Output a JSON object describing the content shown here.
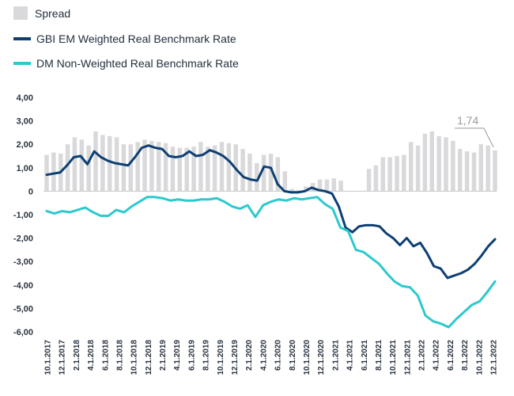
{
  "chart_data": {
    "type": "bar+line",
    "title": "",
    "xlabel": "",
    "ylabel": "",
    "ylim": [
      -6,
      4
    ],
    "yticks": [
      "4,00",
      "3,00",
      "2,00",
      "1,00",
      "0",
      "-1,00",
      "-2,00",
      "-3,00",
      "-4,00",
      "-5,00",
      "-6,00"
    ],
    "ytick_values": [
      4,
      3,
      2,
      1,
      0,
      -1,
      -2,
      -3,
      -4,
      -5,
      -6
    ],
    "xtick_labels": [
      "10.1.2017",
      "12.1.2017",
      "2.1.2018",
      "4.1.2018",
      "6.1.2018",
      "8.1.2018",
      "10.1.2018",
      "12.1.2018",
      "2.1.2019",
      "4.1.2019",
      "6.1.2019",
      "8.1.2019",
      "10.1.2019",
      "12.1.2019",
      "2.1.2020",
      "4.1.2020",
      "6.1.2020",
      "8.1.2020",
      "10.1.2020",
      "12.1.2020",
      "2.1.2021",
      "4.1.2021",
      "6.1.2021",
      "8.1.2021",
      "10.1.2021",
      "12.1.2021",
      "2.1.2022",
      "4.1.2022",
      "6.1.2022",
      "8.1.2022",
      "10.1.2022",
      "12.1.2022"
    ],
    "series": [
      {
        "name": "Spread",
        "kind": "bar",
        "color": "#d9d9dc",
        "values": [
          1.55,
          1.65,
          1.6,
          2.0,
          2.3,
          2.2,
          1.95,
          2.55,
          2.4,
          2.35,
          2.3,
          2.0,
          2.0,
          2.1,
          2.2,
          2.15,
          2.1,
          2.05,
          1.9,
          1.85,
          1.85,
          1.9,
          2.1,
          1.9,
          1.95,
          2.1,
          2.05,
          2.0,
          1.8,
          1.6,
          1.2,
          1.55,
          1.6,
          1.45,
          0.85,
          0.1,
          0.05,
          0.2,
          0.35,
          0.5,
          0.5,
          0.55,
          0.45,
          0.0,
          0.0,
          0.0,
          0.95,
          1.1,
          1.45,
          1.45,
          1.5,
          1.55,
          2.1,
          1.95,
          2.45,
          2.55,
          2.35,
          2.3,
          2.15,
          1.8,
          1.7,
          1.65,
          2.0,
          1.95,
          1.74
        ]
      },
      {
        "name": "GBI EM Weighted Real Benchmark Rate",
        "kind": "line",
        "color": "#0d3f73",
        "values": [
          0.7,
          0.75,
          0.8,
          1.1,
          1.45,
          1.5,
          1.15,
          1.7,
          1.45,
          1.3,
          1.2,
          1.15,
          1.1,
          1.45,
          1.85,
          1.95,
          1.85,
          1.8,
          1.5,
          1.45,
          1.5,
          1.7,
          1.5,
          1.55,
          1.75,
          1.65,
          1.5,
          1.25,
          0.9,
          0.6,
          0.5,
          0.45,
          1.05,
          1.0,
          0.3,
          0.0,
          -0.05,
          -0.05,
          0.0,
          0.15,
          0.05,
          0.0,
          -0.1,
          -0.65,
          -1.55,
          -1.75,
          -1.5,
          -1.45,
          -1.45,
          -1.5,
          -1.8,
          -2.0,
          -2.3,
          -2.0,
          -2.35,
          -2.2,
          -2.65,
          -3.2,
          -3.3,
          -3.7,
          -3.6,
          -3.5,
          -3.35,
          -3.1,
          -2.75,
          -2.35,
          -2.05
        ]
      },
      {
        "name": "DM Non-Weighted Real Benchmark Rate",
        "kind": "line",
        "color": "#2cc9cf",
        "values": [
          -0.85,
          -0.95,
          -0.85,
          -0.9,
          -0.8,
          -0.7,
          -0.9,
          -1.05,
          -1.05,
          -0.8,
          -0.9,
          -0.65,
          -0.45,
          -0.25,
          -0.25,
          -0.3,
          -0.4,
          -0.35,
          -0.4,
          -0.4,
          -0.35,
          -0.35,
          -0.3,
          -0.45,
          -0.65,
          -0.75,
          -0.6,
          -1.1,
          -0.6,
          -0.45,
          -0.35,
          -0.4,
          -0.3,
          -0.35,
          -0.3,
          -0.25,
          -0.55,
          -0.75,
          -1.55,
          -1.7,
          -2.5,
          -2.6,
          -2.85,
          -3.1,
          -3.5,
          -3.85,
          -4.05,
          -4.1,
          -4.45,
          -5.3,
          -5.55,
          -5.65,
          -5.8,
          -5.45,
          -5.15,
          -4.85,
          -4.7,
          -4.3,
          -3.85
        ]
      }
    ],
    "annotation": {
      "text": "1,74",
      "series": "Spread",
      "target": "last"
    }
  },
  "legend": {
    "spread": "Spread",
    "em": "GBI EM Weighted Real Benchmark Rate",
    "dm": "DM Non-Weighted Real Benchmark Rate"
  },
  "colors": {
    "spread": "#d9d9dc",
    "em": "#0d3f73",
    "dm": "#2cc9cf",
    "annotation": "#9a9a9a"
  }
}
